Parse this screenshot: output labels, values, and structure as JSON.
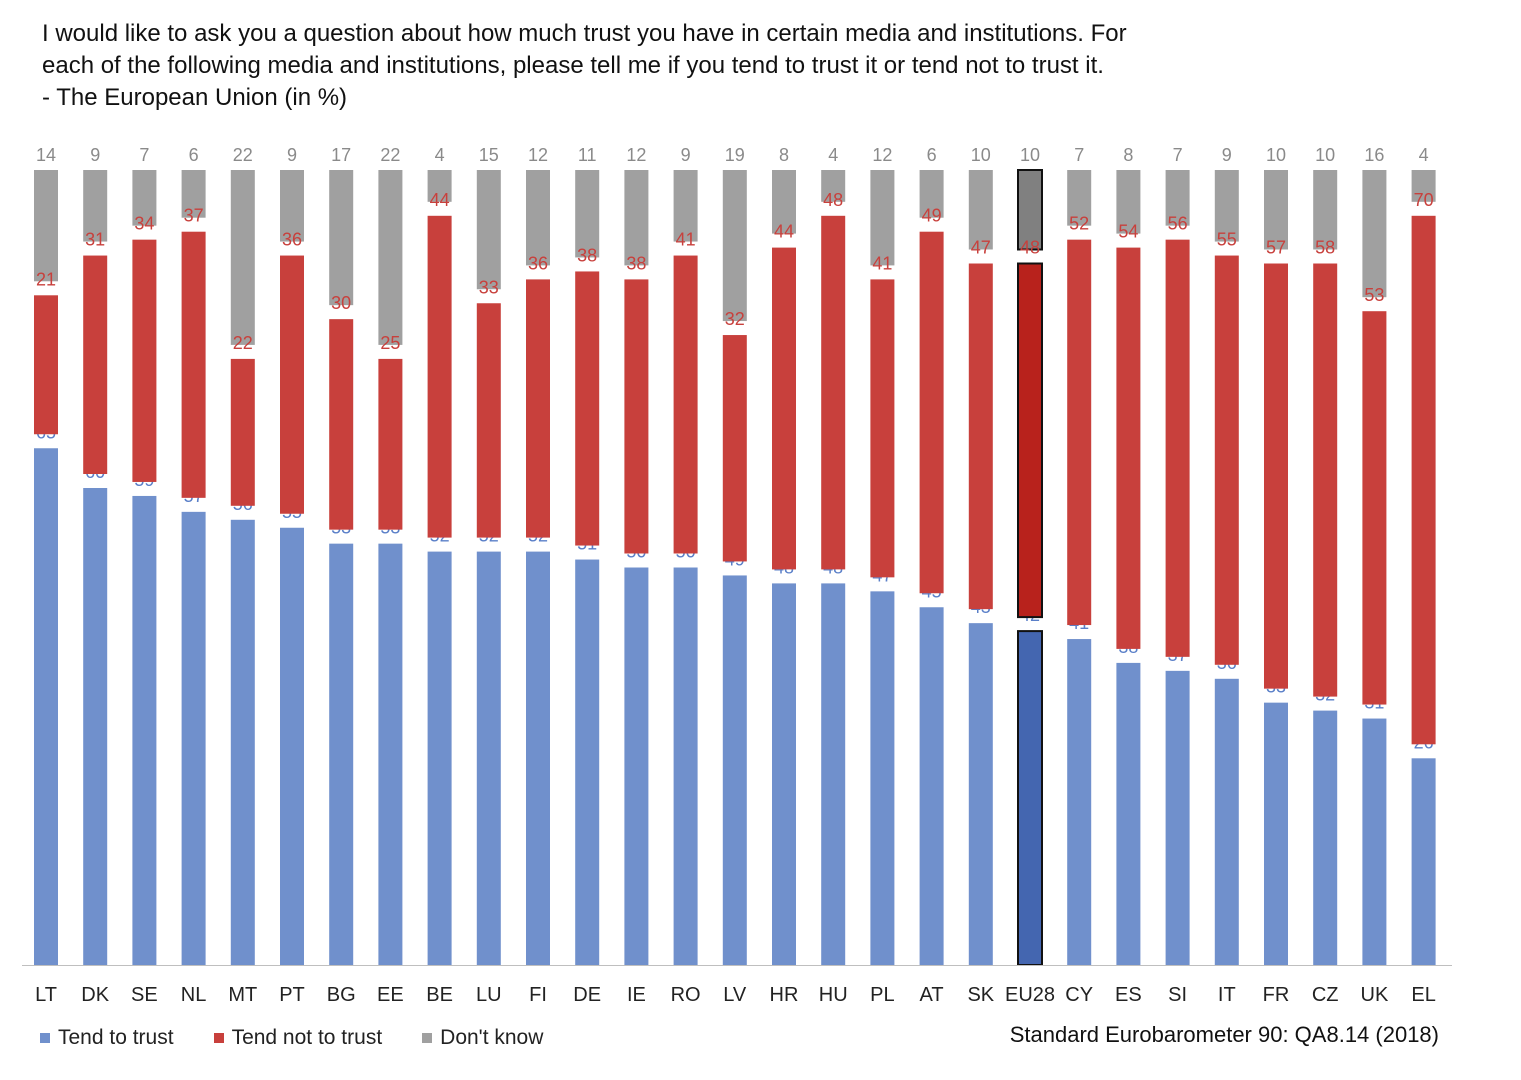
{
  "title": {
    "line1": "I would like to ask you a question about how much trust you have in certain media and institutions. For",
    "line2": "each of the following media and institutions, please tell me if you tend to trust it or tend not to trust it.",
    "line3": "- The European Union (in %)"
  },
  "legend": {
    "trust": "Tend to trust",
    "not_trust": "Tend not to trust",
    "dont_know": "Don't know"
  },
  "source": "Standard Eurobarometer 90: QA8.14 (2018)",
  "colors": {
    "trust": "#7090cc",
    "not_trust": "#c8403c",
    "dont_know": "#a0a0a0",
    "trust_highlight": "#4466b0",
    "not_trust_highlight": "#b8221c",
    "dont_know_highlight": "#808080",
    "trust_label": "#5a7fc8",
    "not_trust_label": "#c8403c",
    "dont_know_label": "#8a8a8a"
  },
  "chart_data": {
    "type": "bar",
    "stacked": true,
    "title": "The European Union (in %)",
    "xlabel": "",
    "ylabel": "",
    "ylim": [
      0,
      100
    ],
    "highlight": "EU28",
    "categories": [
      "LT",
      "DK",
      "SE",
      "NL",
      "MT",
      "PT",
      "BG",
      "EE",
      "BE",
      "LU",
      "FI",
      "DE",
      "IE",
      "RO",
      "LV",
      "HR",
      "HU",
      "PL",
      "AT",
      "SK",
      "EU28",
      "CY",
      "ES",
      "SI",
      "IT",
      "FR",
      "CZ",
      "UK",
      "EL"
    ],
    "series": [
      {
        "name": "Tend to trust",
        "values": [
          65,
          60,
          59,
          57,
          56,
          55,
          53,
          53,
          52,
          52,
          52,
          51,
          50,
          50,
          49,
          48,
          48,
          47,
          45,
          43,
          42,
          41,
          38,
          37,
          36,
          33,
          32,
          31,
          26
        ]
      },
      {
        "name": "Tend not to trust",
        "values": [
          21,
          31,
          34,
          37,
          22,
          36,
          30,
          25,
          44,
          33,
          36,
          38,
          38,
          41,
          32,
          44,
          48,
          41,
          49,
          47,
          48,
          52,
          54,
          56,
          55,
          57,
          58,
          53,
          70
        ]
      },
      {
        "name": "Don't know",
        "values": [
          14,
          9,
          7,
          6,
          22,
          9,
          17,
          22,
          4,
          15,
          12,
          11,
          12,
          9,
          19,
          8,
          4,
          12,
          6,
          10,
          10,
          7,
          8,
          7,
          9,
          10,
          10,
          16,
          4
        ]
      }
    ]
  }
}
